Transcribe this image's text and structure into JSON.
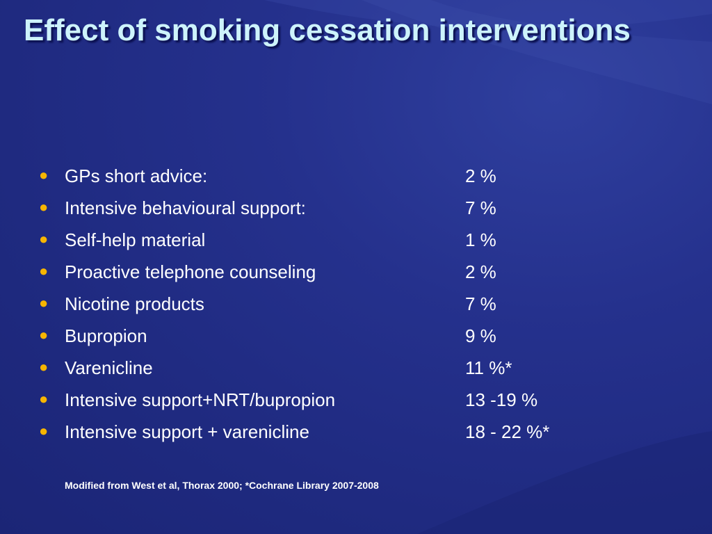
{
  "slide": {
    "title": "Effect of smoking cessation interventions",
    "items": [
      {
        "label": "GPs short advice:",
        "value": "2 %"
      },
      {
        "label": "Intensive behavioural support:",
        "value": "7 %"
      },
      {
        "label": "Self-help material",
        "value": "1 %"
      },
      {
        "label": "Proactive telephone counseling",
        "value": "2 %"
      },
      {
        "label": "Nicotine products",
        "value": "7 %"
      },
      {
        "label": "Bupropion",
        "value": "9 %"
      },
      {
        "label": "Varenicline",
        "value": "11 %*"
      },
      {
        "label": "Intensive support+NRT/bupropion",
        "value": "13 -19 %"
      },
      {
        "label": "Intensive support + varenicline",
        "value": "18 - 22 %*"
      }
    ],
    "footnote": "Modified from West et al, Thorax 2000; *Cochrane Library 2007-2008"
  },
  "colors": {
    "background": "#23308a",
    "title": "#cdf3fb",
    "bullet": "#f7b500",
    "text": "#ffffff"
  },
  "icons": {
    "bullet": "bullet-dot-icon"
  }
}
